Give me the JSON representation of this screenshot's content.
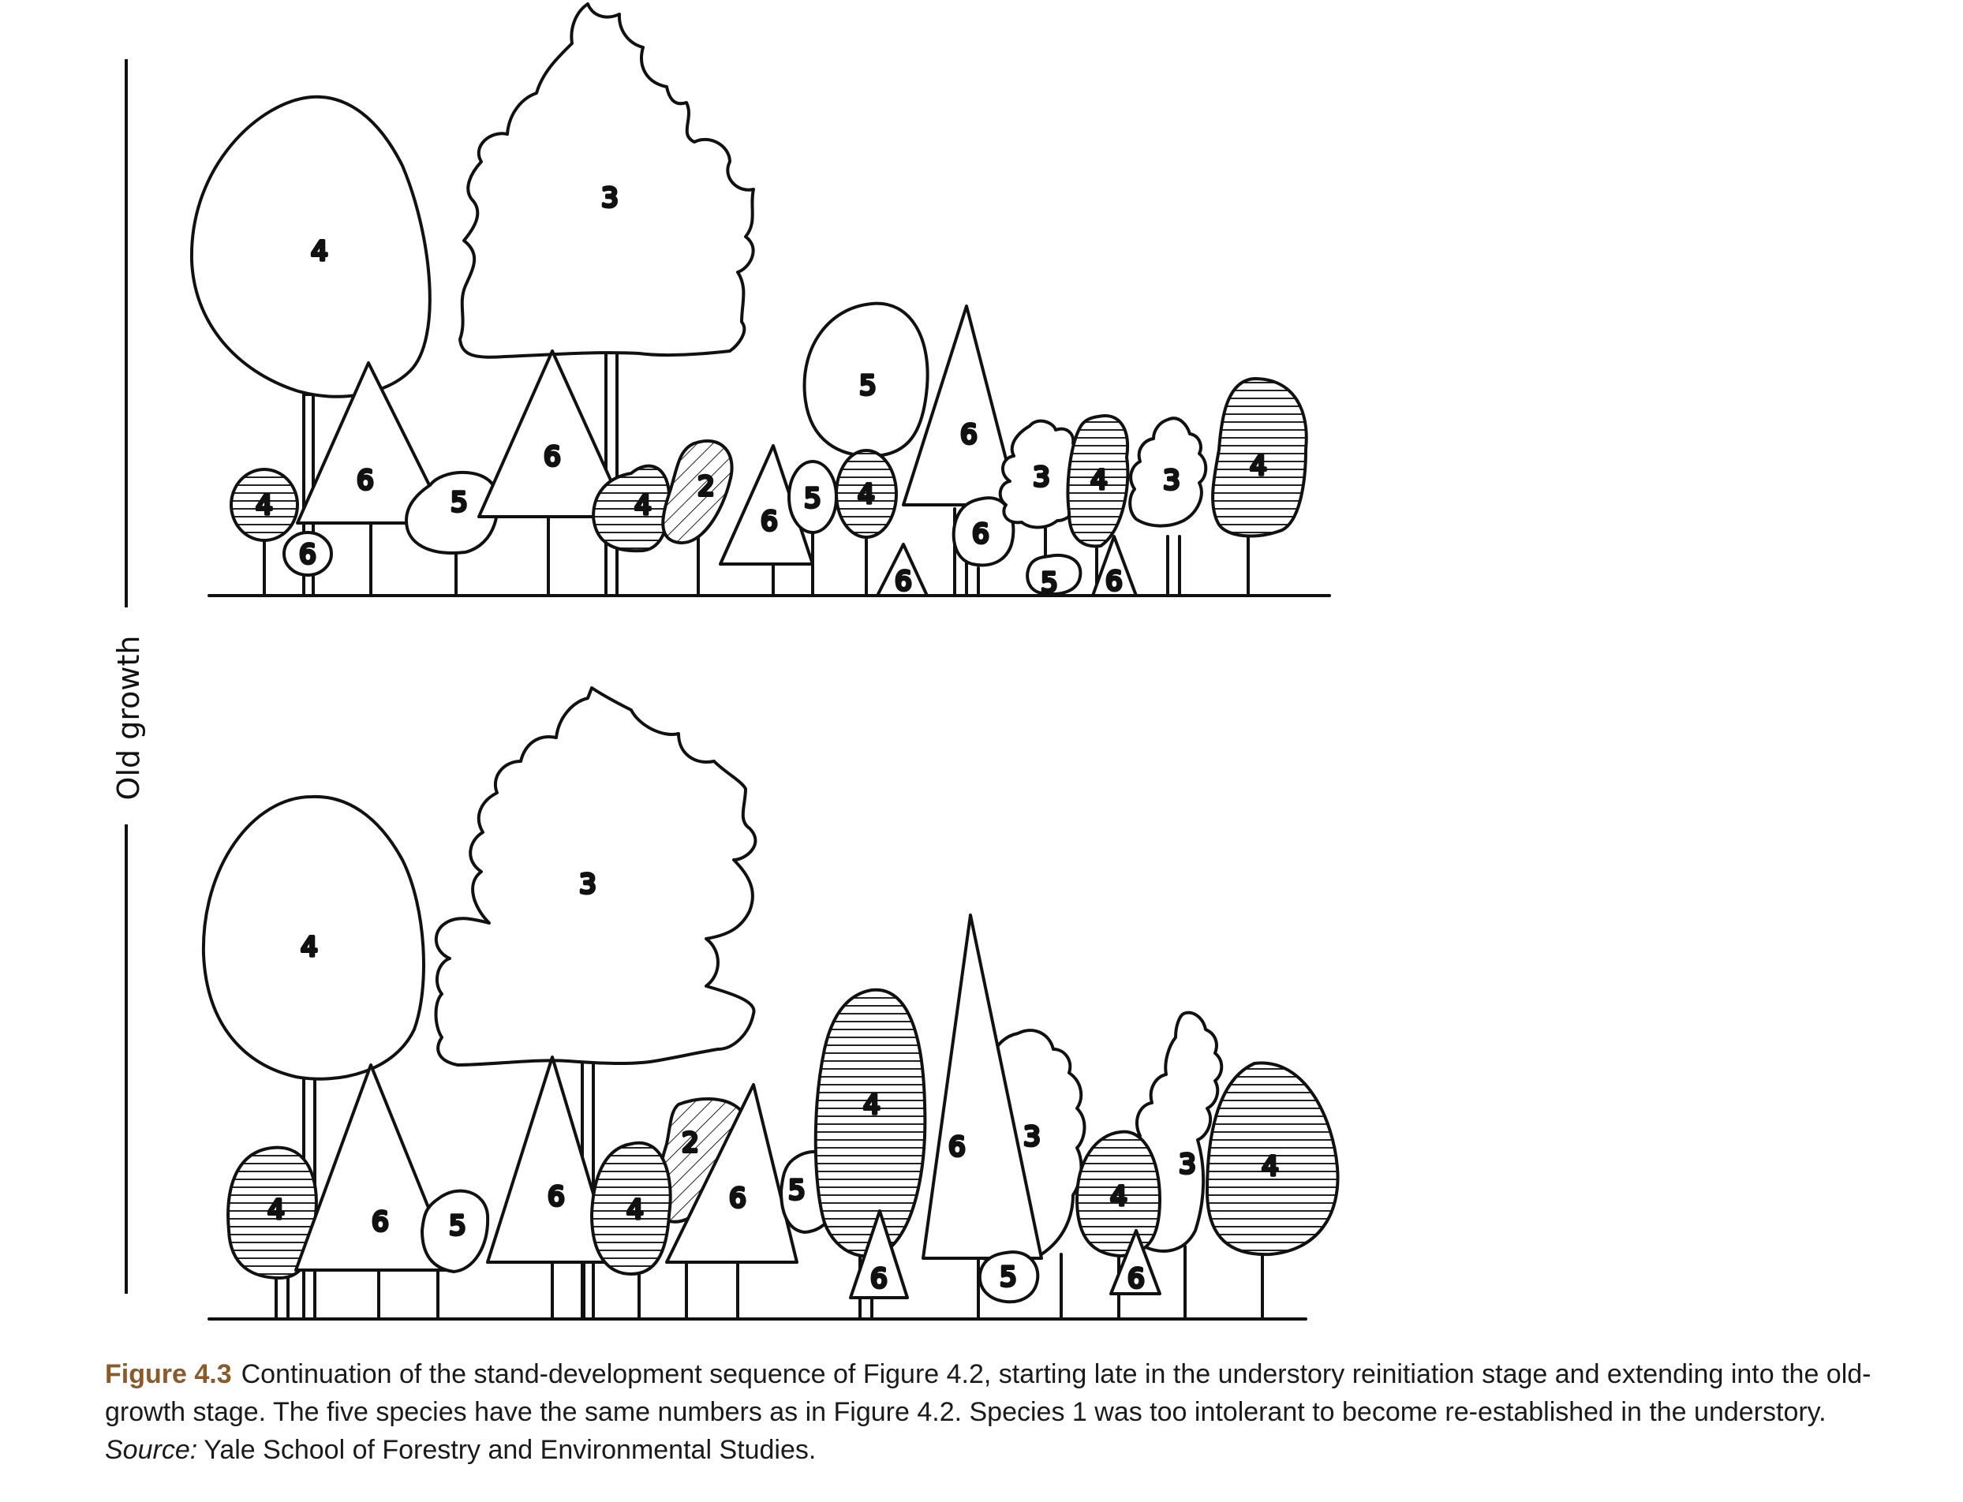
{
  "stage_label": "Old growth",
  "labels": {
    "species2": "2",
    "species3": "3",
    "species4": "4",
    "species5": "5",
    "species6": "6"
  },
  "caption": {
    "figure_number": "Figure 4.3",
    "text": "Continuation of the stand-development sequence of Figure 4.2, starting late in the understory reinitiation stage and extending into the old-growth stage. The five species have the same numbers as in Figure 4.2. Species 1 was too intolerant to become re-established in the understory.",
    "source_label": "Source:",
    "source_text": "Yale School of Forestry and Environmental Studies."
  }
}
